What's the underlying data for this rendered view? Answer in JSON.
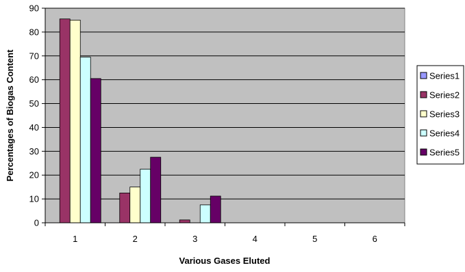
{
  "colors": {
    "plot_background": "#c0c0c0",
    "gridline": "#000000",
    "series": [
      "#9999ff",
      "#993366",
      "#ffffcc",
      "#ccffff",
      "#660066"
    ]
  },
  "chart_data": {
    "type": "bar",
    "title": "",
    "xlabel": "Various Gases Eluted",
    "ylabel": "Percentages of Biogas Content",
    "categories": [
      "1",
      "2",
      "3",
      "4",
      "5",
      "6"
    ],
    "ylim": [
      0,
      90
    ],
    "yticks": [
      0,
      10,
      20,
      30,
      40,
      50,
      60,
      70,
      80,
      90
    ],
    "yticks_labels": [
      "0",
      "10",
      "20",
      "30",
      "40",
      "50",
      "60",
      "70",
      "80",
      "90"
    ],
    "grid": true,
    "legend_position": "right",
    "series": [
      {
        "name": "Series1",
        "values": [
          0,
          0,
          0,
          0,
          0,
          0
        ]
      },
      {
        "name": "Series2",
        "values": [
          85.5,
          12.5,
          1.2,
          0,
          0,
          0
        ]
      },
      {
        "name": "Series3",
        "values": [
          85,
          15,
          0,
          0,
          0,
          0
        ]
      },
      {
        "name": "Series4",
        "values": [
          69.5,
          22.5,
          7.5,
          0,
          0,
          0
        ]
      },
      {
        "name": "Series5",
        "values": [
          60.5,
          27.5,
          11.2,
          0,
          0,
          0
        ]
      }
    ]
  }
}
